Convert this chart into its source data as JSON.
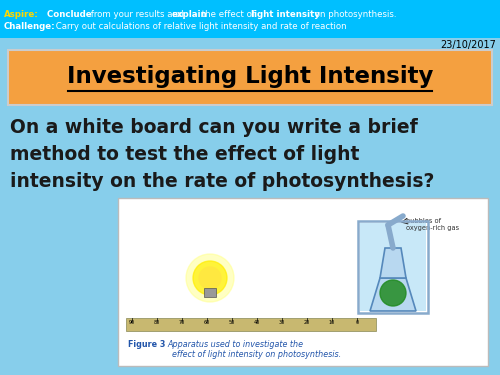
{
  "bg_color": "#87CEEB",
  "header_bg": "#00BFFF",
  "date": "23/10/2017",
  "title_box_color": "#F4A040",
  "title_text": "Investigating Light Intensity",
  "body_text_line1": "On a white board can you write a brief",
  "body_text_line2": "method to test the effect of light",
  "body_text_line3": "intensity on the rate of photosynthesis?",
  "figure_caption_bold": "Figure 3  ",
  "figure_caption_italic": "Apparatus used to investigate the\n  effect of light intensity on photosynthesis.",
  "aspire_color": "#FFD700",
  "header_font_color": "#FFFFFF",
  "body_font_color": "#1a1a1a",
  "title_font_color": "#000000",
  "date_color": "#000000",
  "caption_color": "#2255AA"
}
